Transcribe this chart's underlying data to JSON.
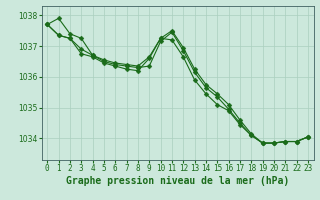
{
  "title": "Graphe pression niveau de la mer (hPa)",
  "xlabel_ticks": [
    "0",
    "1",
    "2",
    "3",
    "4",
    "5",
    "6",
    "7",
    "8",
    "9",
    "10",
    "11",
    "12",
    "13",
    "14",
    "15",
    "16",
    "17",
    "18",
    "19",
    "20",
    "21",
    "22",
    "23"
  ],
  "x": [
    0,
    1,
    2,
    3,
    4,
    5,
    6,
    7,
    8,
    9,
    10,
    11,
    12,
    13,
    14,
    15,
    16,
    17,
    18,
    19,
    20,
    21,
    22,
    23
  ],
  "series": [
    [
      1037.7,
      1037.9,
      1037.4,
      1037.25,
      1036.7,
      1036.55,
      1036.45,
      1036.4,
      1036.35,
      1036.65,
      1037.25,
      1037.2,
      1036.65,
      1035.9,
      1035.45,
      1035.1,
      1034.9,
      1034.45,
      1034.1,
      1033.85,
      1033.85,
      1033.9,
      1033.9,
      1034.05
    ],
    [
      1037.7,
      1037.35,
      1037.25,
      1036.9,
      1036.7,
      1036.5,
      1036.4,
      1036.35,
      1036.3,
      1036.35,
      1037.15,
      1037.45,
      1036.85,
      1036.15,
      1035.65,
      1035.35,
      1034.95,
      1034.5,
      1034.1,
      1033.85,
      1033.85,
      1033.9,
      1033.9,
      1034.05
    ],
    [
      1037.7,
      1037.35,
      1037.25,
      1036.75,
      1036.65,
      1036.45,
      1036.35,
      1036.25,
      1036.2,
      1036.6,
      1037.25,
      1037.5,
      1036.95,
      1036.25,
      1035.75,
      1035.45,
      1035.1,
      1034.6,
      1034.15,
      1033.85,
      1033.85,
      1033.9,
      1033.9,
      1034.05
    ]
  ],
  "line_color": "#1a6b1a",
  "bg_color": "#cce8dc",
  "grid_color": "#aacfbf",
  "axis_color": "#406060",
  "text_color": "#1a6b1a",
  "ylim": [
    1033.3,
    1038.3
  ],
  "yticks": [
    1034,
    1035,
    1036,
    1037,
    1038
  ],
  "marker": "D",
  "marker_size": 2.5,
  "linewidth": 0.8,
  "title_fontsize": 7,
  "tick_fontsize": 5.5
}
